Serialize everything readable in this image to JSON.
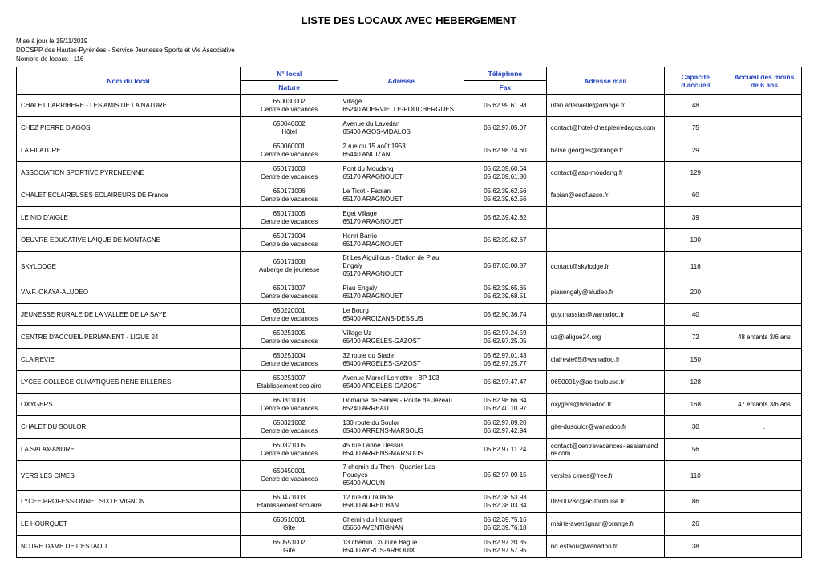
{
  "title": "LISTE DES LOCAUX AVEC HEBERGEMENT",
  "meta": {
    "updated": "Mise à jour le 15/11/2019",
    "service": "DDCSPP des Hautes-Pyrénées - Service Jeunesse Sports et Vie Associative",
    "count": "Nombre de locaux : 116"
  },
  "headers": {
    "nom": "Nom du local",
    "num": "N° local",
    "nature": "Nature",
    "adresse": "Adresse",
    "tel": "Téléphone",
    "fax": "Fax",
    "mail": "Adresse mail",
    "capacite": "Capacité d'accueil",
    "accueil": "Accueil des moins de 6 ans"
  },
  "rows": [
    {
      "nom": "CHALET LARRIBERE - LES AMIS DE LA NATURE",
      "num": "650030002",
      "nature": "Centre de vacances",
      "adr1": "Village",
      "adr2": "65240 ADERVIELLE-POUCHERGUES",
      "tel": "05.62.99.61.98",
      "fax": "",
      "mail": "utan.adervielle@orange.fr",
      "cap": "48",
      "acc": ""
    },
    {
      "nom": "CHEZ PIERRE D'AGOS",
      "num": "650040002",
      "nature": "Hôtel",
      "adr1": "Avenue du Lavedan",
      "adr2": "65400 AGOS-VIDALOS",
      "tel": "05.62.97.05.07",
      "fax": "",
      "mail": "contact@hotel-chezpierredagos.com",
      "cap": "75",
      "acc": ""
    },
    {
      "nom": "LA FILATURE",
      "num": "650060001",
      "nature": "Centre de vacances",
      "adr1": "2 rue du 15 août 1953",
      "adr2": "65440 ANCIZAN",
      "tel": "05.62.98.74.60",
      "fax": "",
      "mail": "balse.georges@orange.fr",
      "cap": "29",
      "acc": ""
    },
    {
      "nom": "ASSOCIATION SPORTIVE PYRENEENNE",
      "num": "650171003",
      "nature": "Centre de vacances",
      "adr1": "Pont du Moudang",
      "adr2": "65170 ARAGNOUET",
      "tel": "05.62.39.60.64",
      "fax": "05.62.39.61.80",
      "mail": "contact@asp-moudang.fr",
      "cap": "129",
      "acc": ""
    },
    {
      "nom": "CHALET ECLAIREUSES ECLAIREURS DE France",
      "num": "650171006",
      "nature": "Centre de vacances",
      "adr1": "Le Ticot - Fabian",
      "adr2": "65170 ARAGNOUET",
      "tel": "05.62.39.62.56",
      "fax": "05.62.39.62.56",
      "mail": "fabian@eedf.asso.fr",
      "cap": "60",
      "acc": ""
    },
    {
      "nom": "LE NID D'AIGLE",
      "num": "650171005",
      "nature": "Centre de vacances",
      "adr1": "Eget Village",
      "adr2": "65170 ARAGNOUET",
      "tel": "05.62.39.42.82",
      "fax": "",
      "mail": "",
      "cap": "39",
      "acc": ""
    },
    {
      "nom": "OEUVRE EDUCATIVE LAIQUE DE MONTAGNE",
      "num": "650171004",
      "nature": "Centre de vacances",
      "adr1": "Henri Barrio",
      "adr2": "65170 ARAGNOUET",
      "tel": "05.62.39.62.67",
      "fax": "",
      "mail": "",
      "cap": "100",
      "acc": ""
    },
    {
      "nom": "SKYLODGE",
      "num": "650171008",
      "nature": "Auberge de jeunesse",
      "adr1": "Bt Les Aiguillous - Station de Piau Engaly",
      "adr2": "65170 ARAGNOUET",
      "tel": "05.87.03.00.87",
      "fax": "",
      "mail": "contact@skylodge.fr",
      "cap": "116",
      "acc": ""
    },
    {
      "nom": "V.V.F. OKAYA-ALUDEO",
      "num": "650171007",
      "nature": "Centre de vacances",
      "adr1": "Piau Engaly",
      "adr2": "65170 ARAGNOUET",
      "tel": "05.62.39.65.65",
      "fax": "05.62.39.68.51",
      "mail": "piauengaly@aludeo.fr",
      "cap": "200",
      "acc": ""
    },
    {
      "nom": "JEUNESSE RURALE DE LA VALLEE DE LA SAYE",
      "num": "650220001",
      "nature": "Centre de vacances",
      "adr1": "Le Bourg",
      "adr2": "65400 ARCIZANS-DESSUS",
      "tel": "05.62.90.36.74",
      "fax": "",
      "mail": "guy.massias@wanadoo.fr",
      "cap": "40",
      "acc": ""
    },
    {
      "nom": "CENTRE D'ACCUEIL PERMANENT - LIGUE 24",
      "num": "650251005",
      "nature": "Centre de vacances",
      "adr1": "Village Uz",
      "adr2": "65400 ARGELES-GAZOST",
      "tel": "05.62.97.24.59",
      "fax": "05.62.97.25.05",
      "mail": "uz@laligue24.org",
      "cap": "72",
      "acc": "48 enfants 3/6 ans"
    },
    {
      "nom": "CLAIREVIE",
      "num": "650251004",
      "nature": "Centre de vacances",
      "adr1": "32 route du Stade",
      "adr2": "65400 ARGELES-GAZOST",
      "tel": "05.62.97.01.43",
      "fax": "05.62.97.25.77",
      "mail": "clairevie65@wanadoo.fr",
      "cap": "150",
      "acc": ""
    },
    {
      "nom": "LYCEE-COLLEGE-CLIMATIQUES RENE BILLERES",
      "num": "650251007",
      "nature": "Etablissement scolaire",
      "adr1": "Avenue Marcel Lemettre - BP 103",
      "adr2": "65400 ARGELES-GAZOST",
      "tel": "05.62.97.47.47",
      "fax": "",
      "mail": "0650001y@ac-toulouse.fr",
      "cap": "128",
      "acc": ""
    },
    {
      "nom": "OXYGERS",
      "num": "650311003",
      "nature": "Centre de vacances",
      "adr1": "Domaine de Serres - Route de Jezeau",
      "adr2": "65240 ARREAU",
      "tel": "05.62.98.66.34",
      "fax": "05.62.40.10.97",
      "mail": "oxygers@wanadoo.fr",
      "cap": "168",
      "acc": "47 enfants 3/6 ans"
    },
    {
      "nom": "CHALET DU SOULOR",
      "num": "650321002",
      "nature": "Centre de vacances",
      "adr1": "130 route du Soulor",
      "adr2": "65400 ARRENS-MARSOUS",
      "tel": "05.62.97.09.20",
      "fax": "05.62.97.42.94",
      "mail": "gite-dusoulor@wanadoo.fr",
      "cap": "30",
      "acc": "."
    },
    {
      "nom": "LA SALAMANDRE",
      "num": "650321005",
      "nature": "Centre de vacances",
      "adr1": "45 rue Lanne Dessus",
      "adr2": "65400 ARRENS-MARSOUS",
      "tel": "05.62.97.11.24",
      "fax": "",
      "mail": "contact@centrevacances-lasalamandre.com",
      "cap": "56",
      "acc": ""
    },
    {
      "nom": "VERS LES CIMES",
      "num": "650450001",
      "nature": "Centre de vacances",
      "adr1": "7 chemin du Then - Quartier Las Poueyes",
      "adr2": "65400 AUCUN",
      "tel": "05 62 97 09 15",
      "fax": "",
      "mail": "versles cimes@free.fr",
      "cap": "110",
      "acc": ""
    },
    {
      "nom": "LYCEE PROFESSIONNEL SIXTE VIGNON",
      "num": "650471003",
      "nature": "Etablissement scolaire",
      "adr1": "12 rue du Taillade",
      "adr2": "65800 AUREILHAN",
      "tel": "05.62.38.53.93",
      "fax": "05.62.38.03.34",
      "mail": "0650028c@ac-toulouse.fr",
      "cap": "86",
      "acc": ""
    },
    {
      "nom": "LE HOURQUET",
      "num": "650510001",
      "nature": "Gîte",
      "adr1": "Chemin du Hourquet",
      "adr2": "65660 AVENTIGNAN",
      "tel": "05.62.39.75.16",
      "fax": "05.62.39.76.18",
      "mail": "mairie-aventignan@orange.fr",
      "cap": "26",
      "acc": ""
    },
    {
      "nom": "NOTRE DAME DE L'ESTAOU",
      "num": "650551002",
      "nature": "Gîte",
      "adr1": "13 chemin Couture Bague",
      "adr2": "65400 AYROS-ARBOUIX",
      "tel": "05.62.97.20.35",
      "fax": "05.62.97.57.95",
      "mail": "nd.estaou@wanadoo.fr",
      "cap": "38",
      "acc": ""
    }
  ]
}
